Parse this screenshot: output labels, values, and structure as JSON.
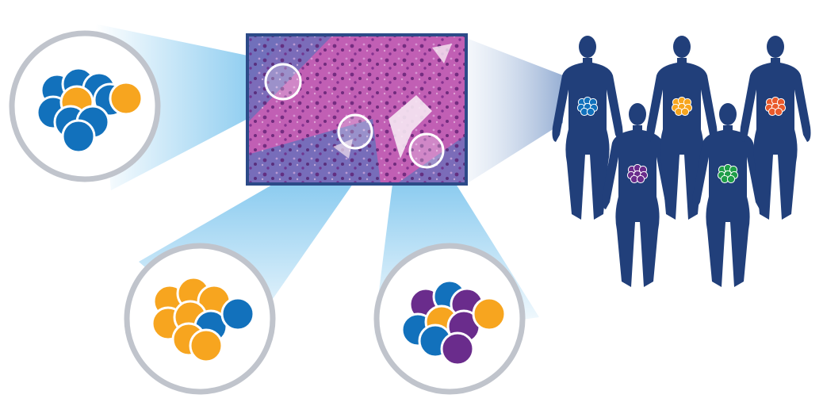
{
  "colors": {
    "cell_blue": "#1271bc",
    "cell_orange": "#f7a51f",
    "cell_purple": "#6a2c8c",
    "cell_green": "#1f9e48",
    "cell_red": "#ea5a2c",
    "body_navy": "#213f7a",
    "ring_gray": "#c0c4cc",
    "beam_blue": "#7fc6ee",
    "tissue_pink": "#c15fb4",
    "tissue_violet": "#6f6fba",
    "frame_navy": "#2c4a88"
  },
  "zoom_circles": [
    {
      "name": "zoom-circle-left",
      "cells": [
        "blue",
        "blue",
        "blue",
        "blue",
        "orange",
        "blue",
        "blue",
        "blue",
        "blue",
        "orange"
      ]
    },
    {
      "name": "zoom-circle-bottom-left",
      "cells": [
        "orange",
        "orange",
        "orange",
        "orange",
        "orange",
        "blue",
        "orange",
        "orange",
        "blue"
      ]
    },
    {
      "name": "zoom-circle-bottom-right",
      "cells": [
        "purple",
        "blue",
        "purple",
        "blue",
        "orange",
        "purple",
        "blue",
        "purple",
        "orange"
      ]
    }
  ],
  "people": [
    {
      "name": "person-1",
      "tumor_color": "blue"
    },
    {
      "name": "person-2",
      "tumor_color": "purple"
    },
    {
      "name": "person-3",
      "tumor_color": "orange"
    },
    {
      "name": "person-4",
      "tumor_color": "green"
    },
    {
      "name": "person-5",
      "tumor_color": "red"
    }
  ]
}
